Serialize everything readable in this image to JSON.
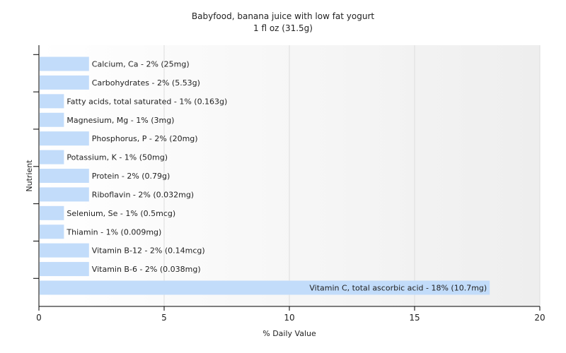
{
  "chart_data": {
    "type": "bar",
    "orientation": "horizontal",
    "title": "Babyfood, banana juice with low fat yogurt",
    "subtitle": "1 fl oz (31.5g)",
    "xlabel": "% Daily Value",
    "ylabel": "Nutrient",
    "xlim": [
      0,
      20
    ],
    "xticks": [
      0,
      5,
      10,
      15,
      20
    ],
    "grid": "vertical",
    "bar_color": "#c2dcfa",
    "categories": [
      "Calcium, Ca",
      "Carbohydrates",
      "Fatty acids, total saturated",
      "Magnesium, Mg",
      "Phosphorus, P",
      "Potassium, K",
      "Protein",
      "Riboflavin",
      "Selenium, Se",
      "Thiamin",
      "Vitamin B-12",
      "Vitamin B-6",
      "Vitamin C, total ascorbic acid"
    ],
    "values": [
      2,
      2,
      1,
      1,
      2,
      1,
      2,
      2,
      1,
      1,
      2,
      2,
      18
    ],
    "labels": [
      "Calcium, Ca - 2% (25mg)",
      "Carbohydrates - 2% (5.53g)",
      "Fatty acids, total saturated - 1% (0.163g)",
      "Magnesium, Mg - 1% (3mg)",
      "Phosphorus, P - 2% (20mg)",
      "Potassium, K - 1% (50mg)",
      "Protein - 2% (0.79g)",
      "Riboflavin - 2% (0.032mg)",
      "Selenium, Se - 1% (0.5mcg)",
      "Thiamin - 1% (0.009mg)",
      "Vitamin B-12 - 2% (0.14mcg)",
      "Vitamin B-6 - 2% (0.038mg)",
      "Vitamin C, total ascorbic acid - 18% (10.7mg)"
    ]
  }
}
